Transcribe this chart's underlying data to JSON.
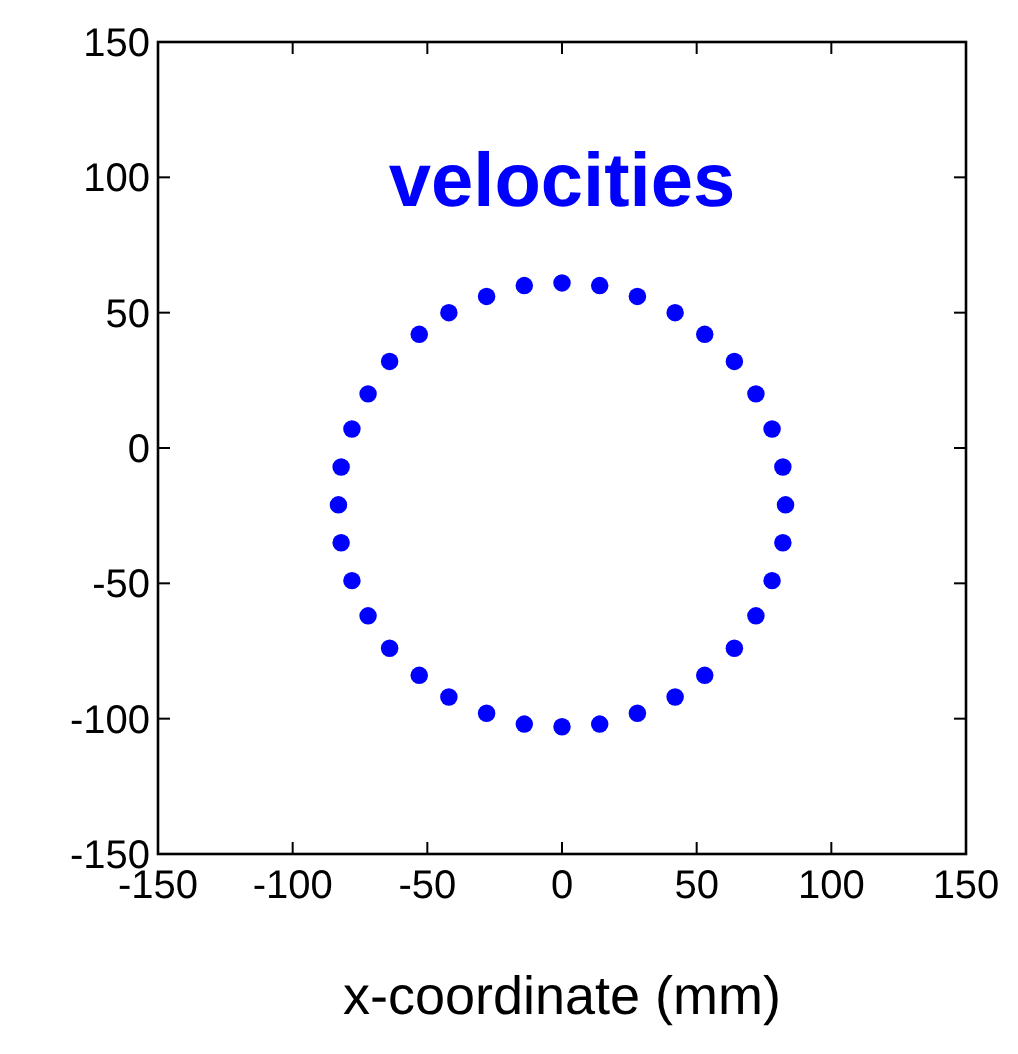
{
  "chart_data": {
    "type": "scatter",
    "title": "velocities",
    "xlabel": "x-coordinate (mm)",
    "xlim": [
      -150,
      150
    ],
    "xticks": [
      -150,
      -100,
      -50,
      0,
      50,
      100,
      150
    ],
    "ylim": [
      -150,
      150
    ],
    "yticks": [
      -150,
      -100,
      -50,
      0,
      50,
      100,
      150
    ],
    "grid": false,
    "marker": "circle",
    "series": [
      {
        "color": "#0000ff",
        "x": [
          83,
          82,
          78,
          72,
          64,
          53,
          42,
          28,
          14,
          0,
          -14,
          -28,
          -42,
          -53,
          -64,
          -72,
          -78,
          -82,
          -83,
          -82,
          -78,
          -72,
          -64,
          -53,
          -42,
          -28,
          -14,
          0,
          14,
          28,
          42,
          53,
          64,
          72,
          78,
          82
        ],
        "values": [
          -21,
          -7,
          7,
          20,
          32,
          42,
          50,
          56,
          60,
          61,
          60,
          56,
          50,
          42,
          32,
          20,
          7,
          -7,
          -21,
          -35,
          -49,
          -62,
          -74,
          -84,
          -92,
          -98,
          -102,
          -103,
          -102,
          -98,
          -92,
          -84,
          -74,
          -62,
          -49,
          -35
        ]
      }
    ]
  }
}
